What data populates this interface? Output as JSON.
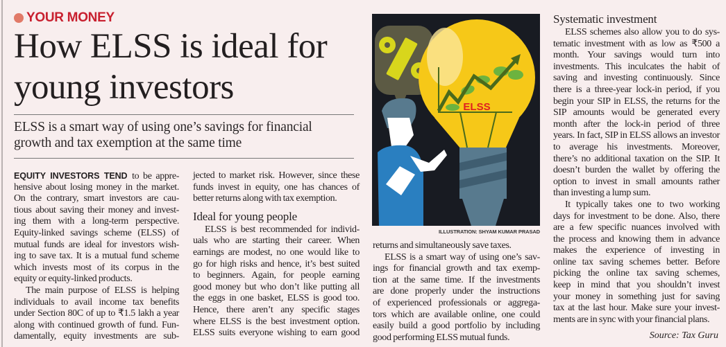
{
  "section": {
    "kicker": "YOUR MONEY",
    "kicker_color": "#c8202f",
    "dot_color": "#e17a68"
  },
  "headline": [
    "How ELSS is ideal for",
    "young investors"
  ],
  "deck": [
    "ELSS is a smart way of using one’s savings for financial",
    "growth and tax exemption at the same time"
  ],
  "illustration": {
    "chart_label": "ELSS",
    "credit": "ILLUSTRATION: SHYAM KUMAR PRASAD"
  },
  "columns": [
    {
      "blocks": [
        {
          "type": "p",
          "lead": "EQUITY INVESTORS TEND",
          "lines": [
            "to be appre-",
            "hensive about losing money in the market.",
            "On the contrary, smart investors are cau-",
            "tious about saving their money and invest-",
            "ing them with a long-term perspective.",
            "Equity-linked savings scheme (ELSS) of",
            "mutual funds are ideal for investors wish-",
            "ing to save tax. It is a mutual fund scheme",
            "which invests most of its corpus in the",
            "equity or equity-linked products."
          ]
        },
        {
          "type": "p",
          "indent": true,
          "continues": true,
          "lines": [
            "The main purpose of ELSS is helping",
            "individuals to avail income tax benefits",
            "under Section 80C of up to ₹1.5 lakh a year",
            "along with continued growth of fund. Fun-",
            "damentally, equity investments are sub-"
          ]
        }
      ]
    },
    {
      "blocks": [
        {
          "type": "p",
          "lines": [
            "jected to market risk. However, since these",
            "funds invest in equity, one has chances of",
            "better returns along with tax exemption."
          ]
        },
        {
          "type": "h",
          "text": "Ideal for young people"
        },
        {
          "type": "p",
          "indent": true,
          "continues": true,
          "lines": [
            "ELSS is best recommended for individ-",
            "uals who are starting their career. When",
            "earnings are modest, no one would like to",
            "go for high risks and hence, it’s best suited",
            "to beginners. Again, for people earning",
            "good money but who don’t like putting all",
            "the eggs in one basket, ELSS is good too.",
            "Hence, there aren’t any specific stages",
            "where ELSS is the best investment option.",
            "ELSS suits everyone wishing to earn good"
          ]
        }
      ]
    },
    {
      "blocks": [
        {
          "type": "p",
          "lines": [
            "returns and simultaneously save taxes."
          ]
        },
        {
          "type": "p",
          "indent": true,
          "lines": [
            "ELSS is a smart way of using one’s sav-",
            "ings for financial growth and tax exemp-",
            "tion at the same time. If the investments",
            "are done properly under the instructions",
            "of experienced professionals or aggrega-",
            "tors which are available online, one could",
            "easily build a good portfolio by including",
            "good performing ELSS mutual funds."
          ]
        }
      ]
    },
    {
      "blocks": [
        {
          "type": "h",
          "text": "Systematic investment"
        },
        {
          "type": "p",
          "indent": true,
          "lines": [
            "ELSS schemes also allow you to do sys-",
            "tematic investment with as low as ₹500 a",
            "month. Your savings would turn into",
            "investments. This inculcates the habit of",
            "saving and investing continuously. Since",
            "there is a three-year lock-in period, if you",
            "begin your SIP in ELSS, the returns for the",
            "SIP amounts would be generated every",
            "month after the lock-in period of three",
            "years. In fact, SIP in ELSS allows an investor",
            "to average his investments. Moreover,",
            "there’s no additional taxation on the SIP. It",
            "doesn’t burden the wallet by offering the",
            "option to invest in small amounts rather",
            "than investing a lump sum."
          ]
        },
        {
          "type": "p",
          "indent": true,
          "lines": [
            "It typically takes one to two working",
            "days for investment to be done. Also, there",
            "are a few specific nuances involved with",
            "the process and knowing them in advance",
            "makes the experience of investing in",
            "online tax saving schemes better. Before",
            "picking the online tax saving schemes,",
            "keep in mind that you shouldn’t invest",
            "your money in something just for saving",
            "tax at the last hour. Make sure your invest-",
            "ments are in sync with your financial plans."
          ]
        }
      ]
    }
  ],
  "source": "Source: Tax Guru"
}
